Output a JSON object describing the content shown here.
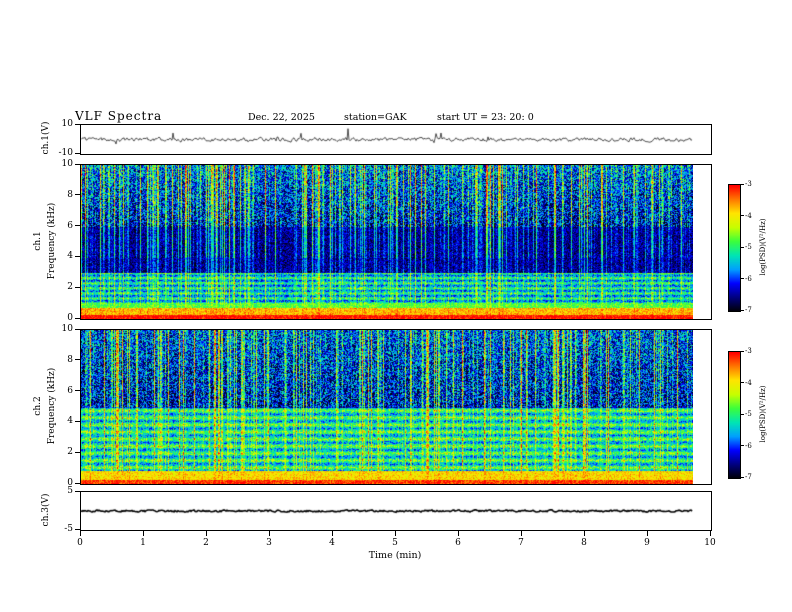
{
  "header": {
    "title": "VLF Spectra",
    "date": "Dec. 22, 2025",
    "station": "station=GAK",
    "start_ut": "start UT =  23: 20: 0"
  },
  "x_axis": {
    "label": "Time (min)",
    "range": [
      0,
      10
    ],
    "ticks": [
      0,
      1,
      2,
      3,
      4,
      5,
      6,
      7,
      8,
      9,
      10
    ],
    "data_end_min": 9.8
  },
  "colormap_stops": [
    "#000006",
    "#000080",
    "#0000ff",
    "#00a0ff",
    "#00e6b4",
    "#3cff3c",
    "#c8ff00",
    "#ffe600",
    "#ff7800",
    "#ff0000"
  ],
  "chart_data": [
    {
      "type": "line",
      "name": "ch1-waveform",
      "ylabel": "ch.1(V)",
      "ylim": [
        -10,
        10
      ],
      "yticks": [
        10,
        -10
      ],
      "description": "Broadband VLF time series, mean 0 V, roughly ±2 V noise with impulsive sferic spikes over 0–9.8 min"
    },
    {
      "type": "heatmap",
      "name": "ch1-spectrogram",
      "channel_label": "ch.1",
      "ylabel": "Frequency (kHz)",
      "ylim": [
        0,
        10
      ],
      "yticks": [
        0,
        2,
        4,
        6,
        8,
        10
      ],
      "description": "Spectrogram: intense yellow/red band below 1 kHz, banded cyan structure 1-3 kHz, dark blue/black 3-6 kHz, dense green speckle and vertical lightning-sferic streaks 6-10 kHz",
      "colorbar": {
        "label": "log(PSD)(V²/Hz)",
        "ticks": [
          -3,
          -4,
          -5,
          -6,
          -7
        ],
        "range": [
          -7,
          -3
        ]
      }
    },
    {
      "type": "heatmap",
      "name": "ch2-spectrogram",
      "channel_label": "ch.2",
      "ylabel": "Frequency (kHz)",
      "ylim": [
        0,
        10
      ],
      "yticks": [
        0,
        2,
        4,
        6,
        8,
        10
      ],
      "description": "Spectrogram: intense band below 1 kHz, horizontal cyan banding 1-5 kHz, green speckle and vertical sferic streaks above 5 kHz",
      "colorbar": {
        "label": "log(PSD)(V²/Hz)",
        "ticks": [
          -3,
          -4,
          -5,
          -6,
          -7
        ],
        "range": [
          -7,
          -3
        ]
      }
    },
    {
      "type": "line",
      "name": "ch3-waveform",
      "ylabel": "ch.3(V)",
      "ylim": [
        -5,
        5
      ],
      "yticks": [
        5,
        -5
      ],
      "description": "Flat dense trace at 0 V"
    }
  ]
}
